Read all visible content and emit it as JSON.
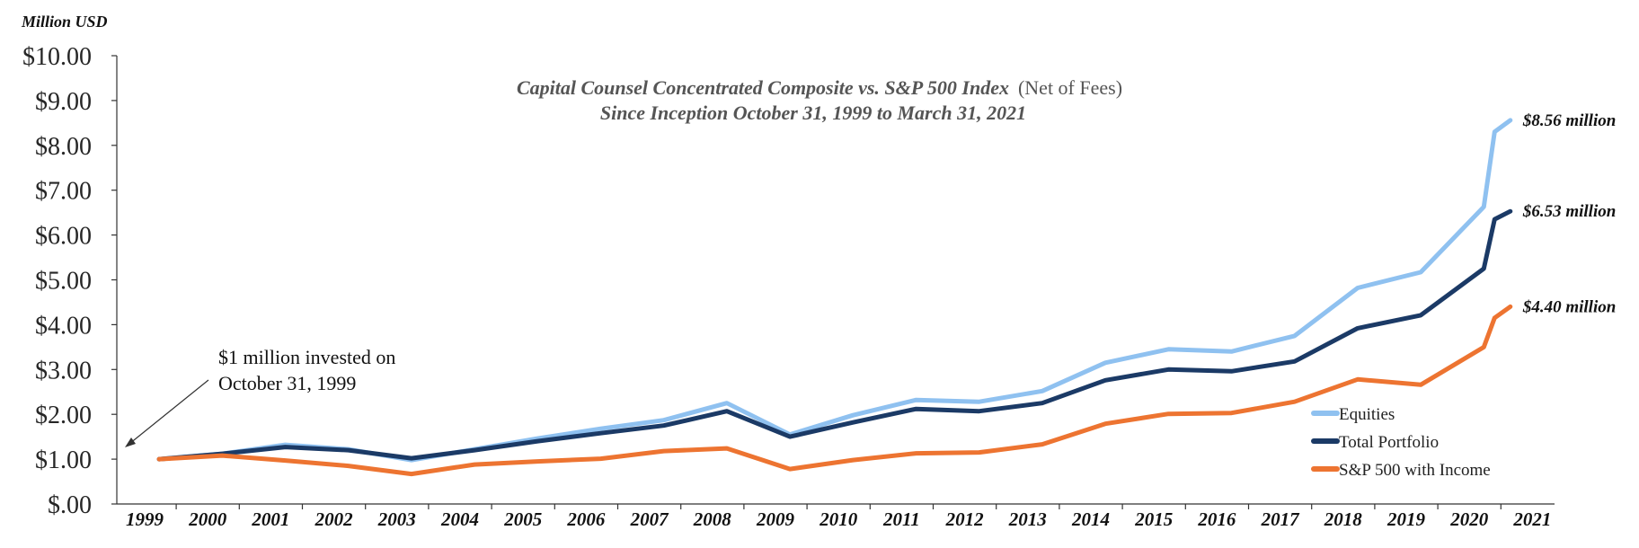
{
  "chart_data": {
    "type": "line",
    "unit_label": "Million USD",
    "title_line1": "Capital Counsel Concentrated Composite vs. S&P 500 Index",
    "title_line1_note": "(Net of Fees)",
    "title_line2": "Since Inception October 31, 1999 to March 31, 2021",
    "annotation": [
      "$1 million invested on",
      "October 31, 1999"
    ],
    "x_ticks": [
      "1999",
      "2000",
      "2001",
      "2002",
      "2003",
      "2004",
      "2005",
      "2006",
      "2007",
      "2008",
      "2009",
      "2010",
      "2011",
      "2012",
      "2013",
      "2014",
      "2015",
      "2016",
      "2017",
      "2018",
      "2019",
      "2020",
      "2021"
    ],
    "y_ticks": [
      "$.00",
      "$1.00",
      "$2.00",
      "$3.00",
      "$4.00",
      "$5.00",
      "$6.00",
      "$7.00",
      "$8.00",
      "$9.00",
      "$10.00"
    ],
    "ylim": [
      0,
      10
    ],
    "x": [
      1999.83,
      2000.83,
      2001.83,
      2002.83,
      2003.83,
      2004.83,
      2005.83,
      2006.83,
      2007.83,
      2008.83,
      2009.83,
      2010.83,
      2011.83,
      2012.83,
      2013.83,
      2014.83,
      2015.83,
      2016.83,
      2017.83,
      2018.83,
      2019.83,
      2020.83,
      2021.0,
      2021.25
    ],
    "series": [
      {
        "name": "Equities",
        "color": "#8fc1f0",
        "values": [
          1.0,
          1.12,
          1.32,
          1.22,
          0.98,
          1.22,
          1.46,
          1.68,
          1.87,
          2.25,
          1.55,
          1.98,
          2.32,
          2.28,
          2.52,
          3.15,
          3.45,
          3.4,
          3.75,
          4.82,
          5.17,
          6.63,
          8.3,
          8.56
        ],
        "end_label": "$8.56 million"
      },
      {
        "name": "Total Portfolio",
        "color": "#1b3a66",
        "values": [
          1.0,
          1.12,
          1.27,
          1.2,
          1.02,
          1.2,
          1.4,
          1.58,
          1.75,
          2.07,
          1.5,
          1.82,
          2.12,
          2.07,
          2.25,
          2.76,
          3.0,
          2.96,
          3.18,
          3.92,
          4.21,
          5.25,
          6.35,
          6.53
        ],
        "end_label": "$6.53 million"
      },
      {
        "name": "S&P 500 with Income",
        "color": "#ed7431",
        "values": [
          1.0,
          1.08,
          0.97,
          0.85,
          0.67,
          0.88,
          0.95,
          1.01,
          1.18,
          1.24,
          0.78,
          0.98,
          1.13,
          1.15,
          1.33,
          1.79,
          2.01,
          2.03,
          2.28,
          2.78,
          2.66,
          3.5,
          4.15,
          4.4
        ],
        "end_label": "$4.40 million"
      }
    ],
    "legend_position": "bottom-right",
    "grid": false
  }
}
